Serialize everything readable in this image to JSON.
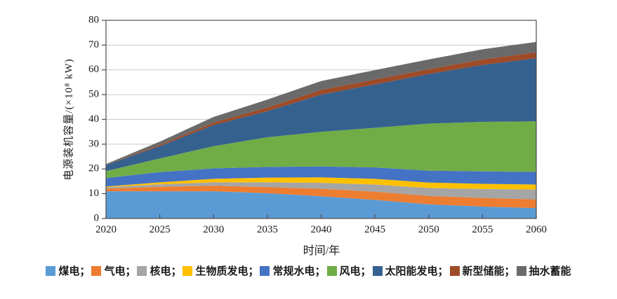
{
  "figure": {
    "background": "#ffffff",
    "axis_color": "#4d4d4d",
    "grid_color": "#c9c9c9"
  },
  "legend": {
    "separator": "；",
    "position": "bottom"
  },
  "chart_data": {
    "type": "area",
    "stacked": true,
    "title": "",
    "xlabel": "时间/年",
    "ylabel": "电源装机容量/(×10⁸ kW)",
    "xlim": [
      2020,
      2060
    ],
    "ylim": [
      0,
      80
    ],
    "ytick_interval": 10,
    "grid": true,
    "legend_position": "bottom",
    "categories": [
      "2020",
      "2025",
      "2030",
      "2035",
      "2040",
      "2045",
      "2050",
      "2055",
      "2060"
    ],
    "yticks": [
      "0",
      "10",
      "20",
      "30",
      "40",
      "50",
      "60",
      "70",
      "80"
    ],
    "series": [
      {
        "id": "coal",
        "name": "煤电",
        "color": "#5B9BD5",
        "values": [
          11.0,
          11.0,
          11.0,
          10.2,
          9.0,
          7.5,
          5.7,
          4.8,
          4.2
        ]
      },
      {
        "id": "gas",
        "name": "气电",
        "color": "#ED7D31",
        "values": [
          1.1,
          1.8,
          2.2,
          2.5,
          3.0,
          3.3,
          3.4,
          3.5,
          3.5
        ]
      },
      {
        "id": "nuclear",
        "name": "核电",
        "color": "#A5A5A5",
        "values": [
          0.5,
          1.0,
          1.4,
          1.9,
          2.4,
          2.9,
          3.2,
          3.6,
          4.0
        ]
      },
      {
        "id": "biomass",
        "name": "生物质发电",
        "color": "#FFC000",
        "values": [
          0.3,
          0.8,
          1.4,
          1.9,
          2.2,
          2.3,
          2.2,
          2.1,
          2.0
        ]
      },
      {
        "id": "hydro",
        "name": "常规水电",
        "color": "#4472C4",
        "values": [
          3.4,
          4.1,
          4.2,
          4.3,
          4.4,
          4.6,
          4.8,
          5.0,
          5.1
        ]
      },
      {
        "id": "wind",
        "name": "风电",
        "color": "#70AD47",
        "values": [
          2.8,
          5.5,
          9.0,
          12.0,
          14.0,
          16.0,
          19.0,
          20.0,
          20.4
        ]
      },
      {
        "id": "solar",
        "name": "太阳能发电",
        "color": "#35618F",
        "values": [
          2.5,
          5.0,
          8.5,
          10.5,
          15.0,
          17.5,
          20.0,
          23.0,
          25.5
        ]
      },
      {
        "id": "storage",
        "name": "新型储能",
        "color": "#9E4B28",
        "values": [
          0.1,
          0.5,
          1.0,
          1.5,
          1.9,
          2.0,
          2.0,
          2.2,
          2.4
        ]
      },
      {
        "id": "pumped",
        "name": "抽水蓄能",
        "color": "#6A6A6A",
        "values": [
          0.3,
          1.3,
          2.3,
          3.2,
          3.6,
          3.8,
          3.9,
          4.1,
          4.2
        ]
      }
    ]
  }
}
